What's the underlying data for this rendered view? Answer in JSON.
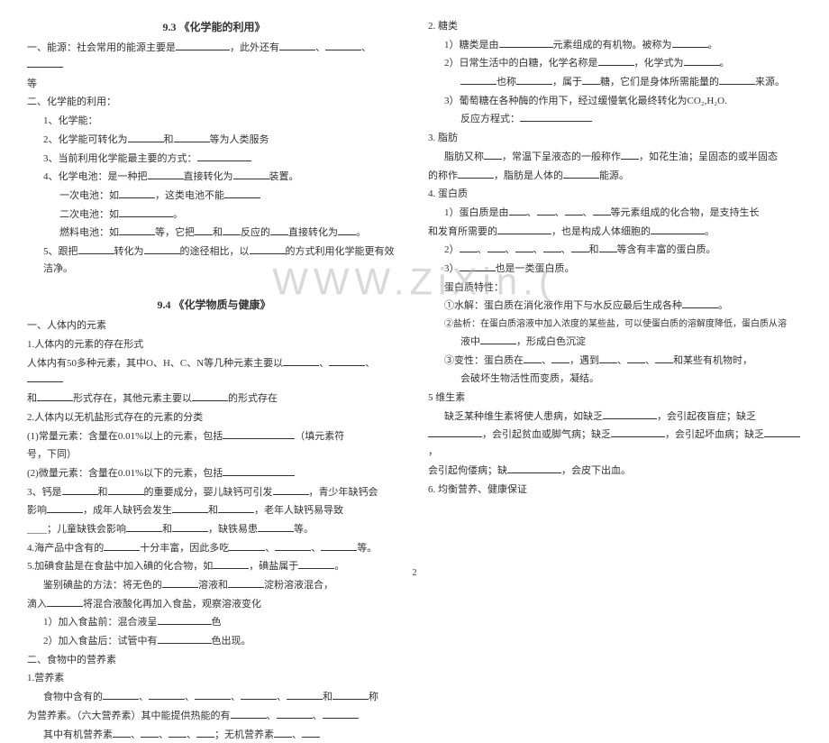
{
  "watermark": "WWW.ZiXin.(",
  "page_num": "2",
  "left": {
    "sec93": {
      "title": "9.3  《化学能的利用》",
      "l1": "一、能源：社会常用的能源主要是",
      "l1b": "，此外还有",
      "l1c": "、",
      "l1d": "、",
      "l1e": "等",
      "l2": "二、化学能的利用：",
      "l3": "1、化学能：",
      "l4a": "2、化学能可转化为",
      "l4b": "和",
      "l4c": "等为人类服务",
      "l5a": "3、当前利用化学能最主要的方式：",
      "l6a": "4、化学电池：是一种把",
      "l6b": "直接转化为",
      "l6c": "装置。",
      "l7a": "一次电池：如",
      "l7b": "，这类电池不能",
      "l8a": "二次电池：如",
      "l8b": "。",
      "l9a": "燃料电池：如",
      "l9b": "等，它把",
      "l9c": "和",
      "l9d": "反应的",
      "l9e": "直接转化为",
      "l9f": "。",
      "l10a": "5、跟把",
      "l10b": "转化为",
      "l10c": "的途径相比，以",
      "l10d": "的方式利用化学能更有效洁净。"
    },
    "sec94": {
      "title": "9.4  《化学物质与健康》",
      "h1": "一、人体内的元素",
      "l1": "1.人体内的元素的存在形式",
      "l2a": "人体内有50多种元素，其中O、H、C、N等几种元素主要以",
      "l2b": "、",
      "l2c": "、",
      "l3a": "和",
      "l3b": "形式存在，其他元素主要以",
      "l3c": "的形式存在",
      "l4": "2.人体内以无机盐形式存在的元素的分类",
      "l5a": "(1)常量元素：含量在0.01%以上的元素，包括",
      "l5b": "（填元素符",
      "l5c": "号，下同）",
      "l6a": "(2)微量元素：含量在0.01%以下的元素，包括",
      "l7a": "3、钙是",
      "l7b": "和",
      "l7c": "的重要成分，婴儿缺钙可引发",
      "l7d": "，青少年缺钙会",
      "l8a": "影响",
      "l8b": "，成年人缺钙会发生",
      "l8c": "和",
      "l8d": "，老年人缺钙易导致",
      "l9a": "____；儿童缺铁会影响",
      "l9b": "和",
      "l9c": "，缺铁易患",
      "l9d": "等。",
      "l10a": "4.海产品中含有的",
      "l10b": "十分丰富，因此多吃",
      "l10c": "、",
      "l10d": "、",
      "l10e": "等。",
      "l11a": "5.加碘食盐是在食盐中加入碘的化合物，如",
      "l11b": "，碘盐属于",
      "l11c": "。",
      "l12a": "鉴别碘盐的方法：将无色的",
      "l12b": "溶液和",
      "l12c": "淀粉溶液混合，",
      "l13a": "滴入",
      "l13b": "将混合液酸化再加入食盐，观察溶液变化",
      "l14a": "1）加入食盐前：混合液呈",
      "l14b": "色",
      "l15a": "2）加入食盐后：试管中有",
      "l15b": "色出现。",
      "h2": "二、食物中的营养素",
      "l16": "1.营养素",
      "l17a": "食物中含有的",
      "l17b": "、",
      "l17c": "、",
      "l17d": "、",
      "l17e": "、",
      "l17f": "和",
      "l17g": "称",
      "l18a": "为营养素。（六大营养素）其中能提供热能的有",
      "l18b": "、",
      "l18c": "、",
      "l19a": "其中有机营养素",
      "l19b": "、",
      "l19c": "、",
      "l19d": "、",
      "l19e": "；无机营养素",
      "l19f": "、"
    }
  },
  "right": {
    "l1": "2. 糖类",
    "l2a": "1）糖类是由",
    "l2b": "元素组成的有机物。被称为",
    "l2c": "。",
    "l3a": "2）日常生活中的白糖，化学名称是",
    "l3b": "，化学式为",
    "l3c": "。",
    "l4a": "也称",
    "l4b": "，属于",
    "l4c": "糖，它们是身体所需能量的",
    "l4d": "来源。",
    "l5a": "3）葡萄糖在各种酶的作用下，经过缓慢氧化最终转化为CO₂,H₂O.",
    "l6": "反应方程式：",
    "l7": "3. 脂肪",
    "l8a": "脂肪又称",
    "l8b": "，常温下呈液态的一般称作",
    "l8c": "，如花生油；呈固态的或半固态",
    "l9a": "的称作",
    "l9b": "，脂肪是人体的",
    "l9c": "能源。",
    "l10": "4. 蛋白质",
    "l11a": "1）蛋白质是由",
    "l11b": "、",
    "l11c": "、",
    "l11d": "、",
    "l11e": "等元素组成的化合物，是支持生长",
    "l12a": "和发育所需要的",
    "l12b": "，也是构成人体细胞的",
    "l12c": "。",
    "l13a": "2）",
    "l13b": "、",
    "l13c": "、",
    "l13d": "、",
    "l13e": "、",
    "l13f": "和",
    "l13g": "等含有丰富的蛋白质。",
    "l14a": "3）",
    "l14b": "也是一类蛋白质。",
    "l15": "蛋白质特性：",
    "l16a": "①水解：蛋白质在消化液作用下与水反应最后生成各种",
    "l16b": "。",
    "l17": "②盐析：在蛋白质溶液中加入浓度的某些盐，可以使蛋白质的溶解度降低，蛋白质从溶",
    "l18a": "液中",
    "l18b": "，形成白色沉淀",
    "l19a": "③变性：蛋白质在",
    "l19b": "、",
    "l19c": "，遇到",
    "l19d": "、",
    "l19e": "、",
    "l19f": "和某些有机物时，",
    "l20": "会破坏生物活性而变质，凝结。",
    "l21": "5 维生素",
    "l22a": "缺乏某种维生素将使人患病，如缺乏",
    "l22b": "，会引起夜盲症；缺乏",
    "l23a": "，会引起贫血或脚气病；缺乏",
    "l23b": "，会引起坏血病；缺乏",
    "l23c": "，",
    "l24a": "会引起佝偻病；缺",
    "l24b": "，会皮下出血。",
    "l25": "6. 均衡营养、健康保证"
  }
}
